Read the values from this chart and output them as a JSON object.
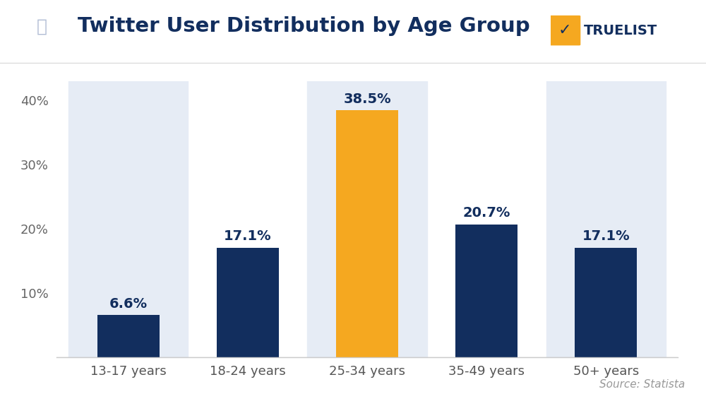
{
  "categories": [
    "13-17 years",
    "18-24 years",
    "25-34 years",
    "35-49 years",
    "50+ years"
  ],
  "values": [
    6.6,
    17.1,
    38.5,
    20.7,
    17.1
  ],
  "bar_colors": [
    "#122e5e",
    "#122e5e",
    "#f5a820",
    "#122e5e",
    "#122e5e"
  ],
  "label_colors": [
    "#122e5e",
    "#122e5e",
    "#122e5e",
    "#122e5e",
    "#122e5e"
  ],
  "title": "Twitter User Distribution by Age Group",
  "title_color": "#122e5e",
  "title_fontsize": 21,
  "ytick_values": [
    0,
    10,
    20,
    30,
    40
  ],
  "ylim": [
    0,
    43
  ],
  "ylabel_fontsize": 13,
  "xlabel_fontsize": 13,
  "source_text": "Source: Statista",
  "source_color": "#999999",
  "source_fontsize": 11,
  "bg_color": "#ffffff",
  "value_fontsize": 14,
  "axis_color": "#cccccc",
  "bar_width": 0.52,
  "col_bg_colors": [
    "#e6ecf5",
    null,
    "#e6ecf5",
    null,
    "#e6ecf5"
  ],
  "truelist_text": "TRUELIST",
  "truelist_color": "#122e5e",
  "truelist_fontsize": 20
}
